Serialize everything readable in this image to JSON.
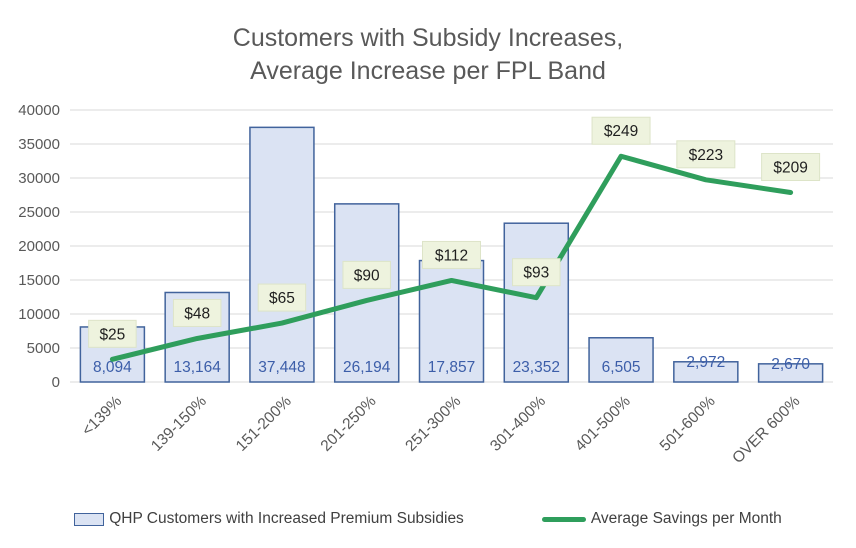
{
  "chart_data": {
    "type": "combo-bar-line",
    "title": "Customers with Subsidy Increases, Average Increase per FPL Band",
    "title_lines": [
      "Customers with Subsidy Increases,",
      "Average Increase per FPL Band"
    ],
    "categories": [
      "<139%",
      "139-150%",
      "151-200%",
      "201-250%",
      "251-300%",
      "301-400%",
      "401-500%",
      "501-600%",
      "OVER 600%"
    ],
    "series": [
      {
        "name": "QHP Customers with Increased Premium Subsidies",
        "type": "bar",
        "axis": "primary",
        "values": [
          8094,
          13164,
          37448,
          26194,
          17857,
          23352,
          6505,
          2972,
          2670
        ],
        "labels": [
          "8,094",
          "13,164",
          "37,448",
          "26,194",
          "17,857",
          "23,352",
          "6,505",
          "2,972",
          "2,670"
        ]
      },
      {
        "name": "Average Savings per Month",
        "type": "line",
        "axis": "secondary",
        "values": [
          25,
          48,
          65,
          90,
          112,
          93,
          249,
          223,
          209
        ],
        "labels": [
          "$25",
          "$48",
          "$65",
          "$90",
          "$112",
          "$93",
          "$249",
          "$223",
          "$209"
        ]
      }
    ],
    "primary_axis": {
      "min": 0,
      "max": 40000,
      "step": 5000,
      "tick_labels": [
        "0",
        "5000",
        "10000",
        "15000",
        "20000",
        "25000",
        "30000",
        "35000",
        "40000"
      ]
    },
    "secondary_axis": {
      "min": 0,
      "max": 300,
      "visible": false
    },
    "grid": true,
    "legend_position": "bottom",
    "xlabel": "",
    "ylabel": "",
    "colors": {
      "bar_fill": "#dbe3f3",
      "bar_border": "#41639c",
      "bar_label_text": "#3c5ea9",
      "line": "#2f9e5c",
      "line_label_bg": "#eef3de",
      "line_label_border": "#dde4c8",
      "line_label_text": "#1f1f1f",
      "grid": "#d9d9d9",
      "axis_text": "#595959",
      "title_text": "#595959",
      "legend_text": "#404040"
    }
  }
}
